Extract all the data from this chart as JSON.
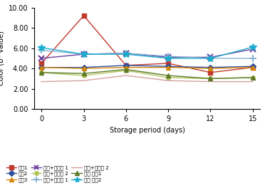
{
  "x": [
    0,
    3,
    6,
    9,
    12,
    15
  ],
  "series": {
    "백미1": [
      4.5,
      9.2,
      4.3,
      4.5,
      3.6,
      4.1
    ],
    "백미2": [
      4.1,
      4.1,
      4.3,
      4.2,
      4.1,
      4.2
    ],
    "백미3": [
      4.1,
      4.0,
      4.1,
      4.1,
      4.0,
      4.1
    ],
    "백미+소맥분 1": [
      5.0,
      5.4,
      5.5,
      5.1,
      5.1,
      5.9
    ],
    "백미+소맥분 2": [
      3.6,
      3.3,
      3.8,
      3.1,
      3.0,
      3.1
    ],
    "백미+전분당 1": [
      5.8,
      5.4,
      5.5,
      5.2,
      5.0,
      5.0
    ],
    "백미+전분당 2": [
      2.7,
      2.8,
      3.3,
      2.8,
      2.7,
      2.7
    ],
    "기타 재료1": [
      3.6,
      3.5,
      3.9,
      3.3,
      3.0,
      3.1
    ],
    "기타 재료2": [
      6.05,
      5.4,
      5.4,
      5.0,
      5.0,
      6.1
    ]
  },
  "colors": {
    "백미1": "#c0392b",
    "백미2": "#2e4f9e",
    "백미3": "#d4850a",
    "백미+소맥분 1": "#6b3fa0",
    "백미+소맥분 2": "#b5c45a",
    "백미+전분당 1": "#8eb4d4",
    "백미+전분당 2": "#d4a0a0",
    "기타 재료1": "#5a7a2a",
    "기타 재료2": "#1aadce"
  },
  "markers": {
    "백미1": "s",
    "백미2": "D",
    "백미3": "^",
    "백미+소맥분 1": "x",
    "백미+소맥분 2": "o",
    "백미+전분당 1": "P",
    "백미+전분당 2": "none",
    "기타 재료1": "^",
    "기타 재료2": "*"
  },
  "xlabel": "Storage period (days)",
  "ylabel": "Color (b* value)",
  "ylim": [
    0.0,
    10.0
  ],
  "yticks": [
    0.0,
    2.0,
    4.0,
    6.0,
    8.0,
    10.0
  ],
  "ytick_labels": [
    "0.00",
    "2.00",
    "4.00",
    "6.00",
    "8.00",
    "10.00"
  ],
  "xticks": [
    0,
    3,
    6,
    9,
    12,
    15
  ],
  "legend_ncol": 3,
  "legend_fontsize": 5.2,
  "axis_fontsize": 7,
  "tick_fontsize": 7
}
